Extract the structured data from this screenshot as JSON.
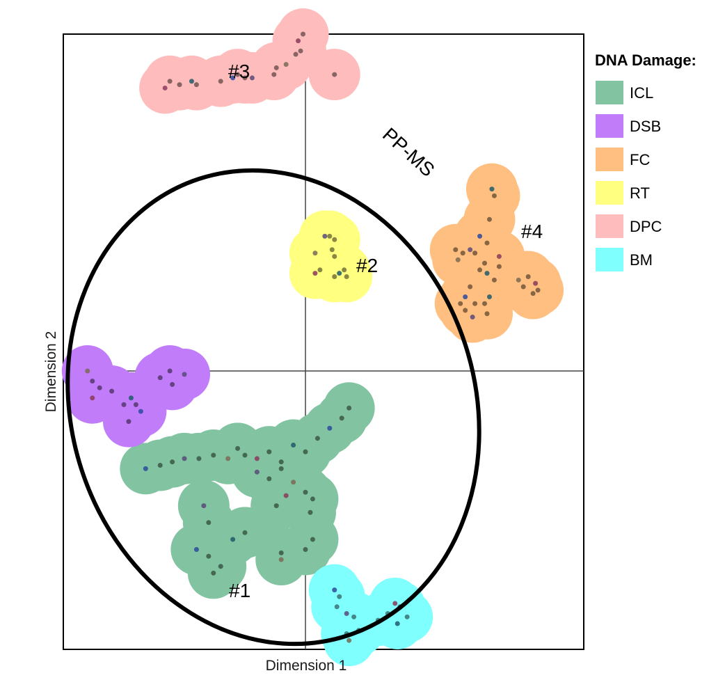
{
  "chart_data": {
    "type": "scatter",
    "xlabel": "Dimension 1",
    "ylabel": "Dimension 2",
    "xlim": [
      -1,
      1.14
    ],
    "ylim": [
      -1,
      1
    ],
    "grid": false,
    "legend": {
      "title": "DNA Damage:",
      "placement": "right",
      "entries": [
        {
          "name": "ICL",
          "color": "#82C3A1"
        },
        {
          "name": "DSB",
          "color": "#C07CF9"
        },
        {
          "name": "FC",
          "color": "#FFBF80"
        },
        {
          "name": "RT",
          "color": "#FFFF80"
        },
        {
          "name": "DPC",
          "color": "#FFBCBC"
        },
        {
          "name": "BM",
          "color": "#80FFFF"
        }
      ]
    },
    "clusters": [
      {
        "name": "ICL",
        "color": "#82C3A1",
        "points": [
          [
            -0.66,
            -0.29
          ],
          [
            -0.6,
            -0.28
          ],
          [
            -0.55,
            -0.27
          ],
          [
            -0.5,
            -0.26
          ],
          [
            -0.44,
            -0.26
          ],
          [
            -0.38,
            -0.25
          ],
          [
            -0.32,
            -0.26
          ],
          [
            -0.25,
            -0.25
          ],
          [
            -0.28,
            -0.23
          ],
          [
            -0.2,
            -0.26
          ],
          [
            -0.15,
            -0.24
          ],
          [
            -0.1,
            -0.27
          ],
          [
            -0.05,
            -0.22
          ],
          [
            0.0,
            -0.24
          ],
          [
            0.05,
            -0.2
          ],
          [
            0.1,
            -0.17
          ],
          [
            0.15,
            -0.14
          ],
          [
            0.18,
            -0.11
          ],
          [
            -0.2,
            -0.3
          ],
          [
            -0.15,
            -0.32
          ],
          [
            -0.1,
            -0.29
          ],
          [
            -0.05,
            -0.33
          ],
          [
            0.0,
            -0.36
          ],
          [
            0.03,
            -0.38
          ],
          [
            -0.08,
            -0.37
          ],
          [
            -0.12,
            -0.4
          ],
          [
            0.02,
            -0.42
          ],
          [
            -0.3,
            -0.5
          ],
          [
            -0.25,
            -0.48
          ],
          [
            -0.4,
            -0.55
          ],
          [
            -0.45,
            -0.53
          ],
          [
            -0.38,
            -0.6
          ],
          [
            -0.35,
            -0.58
          ],
          [
            -0.42,
            -0.4
          ],
          [
            -0.4,
            -0.45
          ],
          [
            -0.1,
            -0.54
          ],
          [
            -0.1,
            -0.56
          ],
          [
            0.0,
            -0.53
          ],
          [
            0.03,
            -0.5
          ]
        ]
      },
      {
        "name": "DSB",
        "color": "#C07CF9",
        "points": [
          [
            -0.9,
            0.0
          ],
          [
            -0.88,
            -0.03
          ],
          [
            -0.85,
            -0.05
          ],
          [
            -0.88,
            -0.08
          ],
          [
            -0.8,
            -0.06
          ],
          [
            -0.75,
            -0.1
          ],
          [
            -0.72,
            -0.08
          ],
          [
            -0.7,
            -0.1
          ],
          [
            -0.73,
            -0.15
          ],
          [
            -0.68,
            -0.12
          ],
          [
            -0.6,
            -0.02
          ],
          [
            -0.56,
            0.0
          ],
          [
            -0.5,
            -0.01
          ],
          [
            -0.55,
            -0.04
          ]
        ]
      },
      {
        "name": "FC",
        "color": "#FFBF80",
        "points": [
          [
            0.77,
            0.54
          ],
          [
            0.78,
            0.52
          ],
          [
            0.76,
            0.45
          ],
          [
            0.72,
            0.4
          ],
          [
            0.75,
            0.38
          ],
          [
            0.7,
            0.35
          ],
          [
            0.68,
            0.36
          ],
          [
            0.65,
            0.35
          ],
          [
            0.62,
            0.36
          ],
          [
            0.63,
            0.33
          ],
          [
            0.72,
            0.3
          ],
          [
            0.74,
            0.32
          ],
          [
            0.8,
            0.34
          ],
          [
            0.8,
            0.31
          ],
          [
            0.78,
            0.27
          ],
          [
            0.76,
            0.22
          ],
          [
            0.74,
            0.2
          ],
          [
            0.68,
            0.25
          ],
          [
            0.66,
            0.22
          ],
          [
            0.7,
            0.2
          ],
          [
            0.75,
            0.17
          ],
          [
            0.69,
            0.16
          ],
          [
            0.66,
            0.18
          ],
          [
            0.64,
            0.2
          ],
          [
            0.88,
            0.27
          ],
          [
            0.9,
            0.25
          ],
          [
            0.92,
            0.28
          ],
          [
            0.95,
            0.26
          ],
          [
            0.96,
            0.24
          ],
          [
            0.94,
            0.23
          ],
          [
            0.75,
            0.29
          ]
        ]
      },
      {
        "name": "RT",
        "color": "#FFFF80",
        "points": [
          [
            0.08,
            0.4
          ],
          [
            0.1,
            0.4
          ],
          [
            0.12,
            0.39
          ],
          [
            0.04,
            0.35
          ],
          [
            0.11,
            0.36
          ],
          [
            0.12,
            0.34
          ],
          [
            0.04,
            0.29
          ],
          [
            0.06,
            0.3
          ],
          [
            0.12,
            0.28
          ],
          [
            0.14,
            0.29
          ],
          [
            0.16,
            0.3
          ],
          [
            0.17,
            0.28
          ]
        ]
      },
      {
        "name": "DPC",
        "color": "#FFBCBC",
        "points": [
          [
            -0.58,
            0.84
          ],
          [
            -0.56,
            0.86
          ],
          [
            -0.52,
            0.85
          ],
          [
            -0.47,
            0.86
          ],
          [
            -0.45,
            0.85
          ],
          [
            -0.35,
            0.86
          ],
          [
            -0.3,
            0.87
          ],
          [
            -0.28,
            0.88
          ],
          [
            -0.25,
            0.87
          ],
          [
            -0.22,
            0.87
          ],
          [
            -0.13,
            0.88
          ],
          [
            -0.12,
            0.9
          ],
          [
            -0.08,
            0.91
          ],
          [
            -0.04,
            0.94
          ],
          [
            -0.02,
            0.95
          ],
          [
            -0.03,
            0.98
          ],
          [
            -0.01,
            1.0
          ],
          [
            0.12,
            0.88
          ]
        ]
      },
      {
        "name": "BM",
        "color": "#80FFFF",
        "points": [
          [
            0.12,
            -0.65
          ],
          [
            0.14,
            -0.67
          ],
          [
            0.13,
            -0.7
          ],
          [
            0.17,
            -0.72
          ],
          [
            0.2,
            -0.73
          ],
          [
            0.17,
            -0.78
          ],
          [
            0.18,
            -0.8
          ],
          [
            0.22,
            -0.77
          ],
          [
            0.3,
            -0.74
          ],
          [
            0.37,
            -0.69
          ],
          [
            0.39,
            -0.7
          ],
          [
            0.34,
            -0.72
          ],
          [
            0.38,
            -0.75
          ],
          [
            0.42,
            -0.73
          ]
        ]
      }
    ],
    "annotations": [
      "#1",
      "#2",
      "#3",
      "#4",
      "PP-MS"
    ]
  }
}
